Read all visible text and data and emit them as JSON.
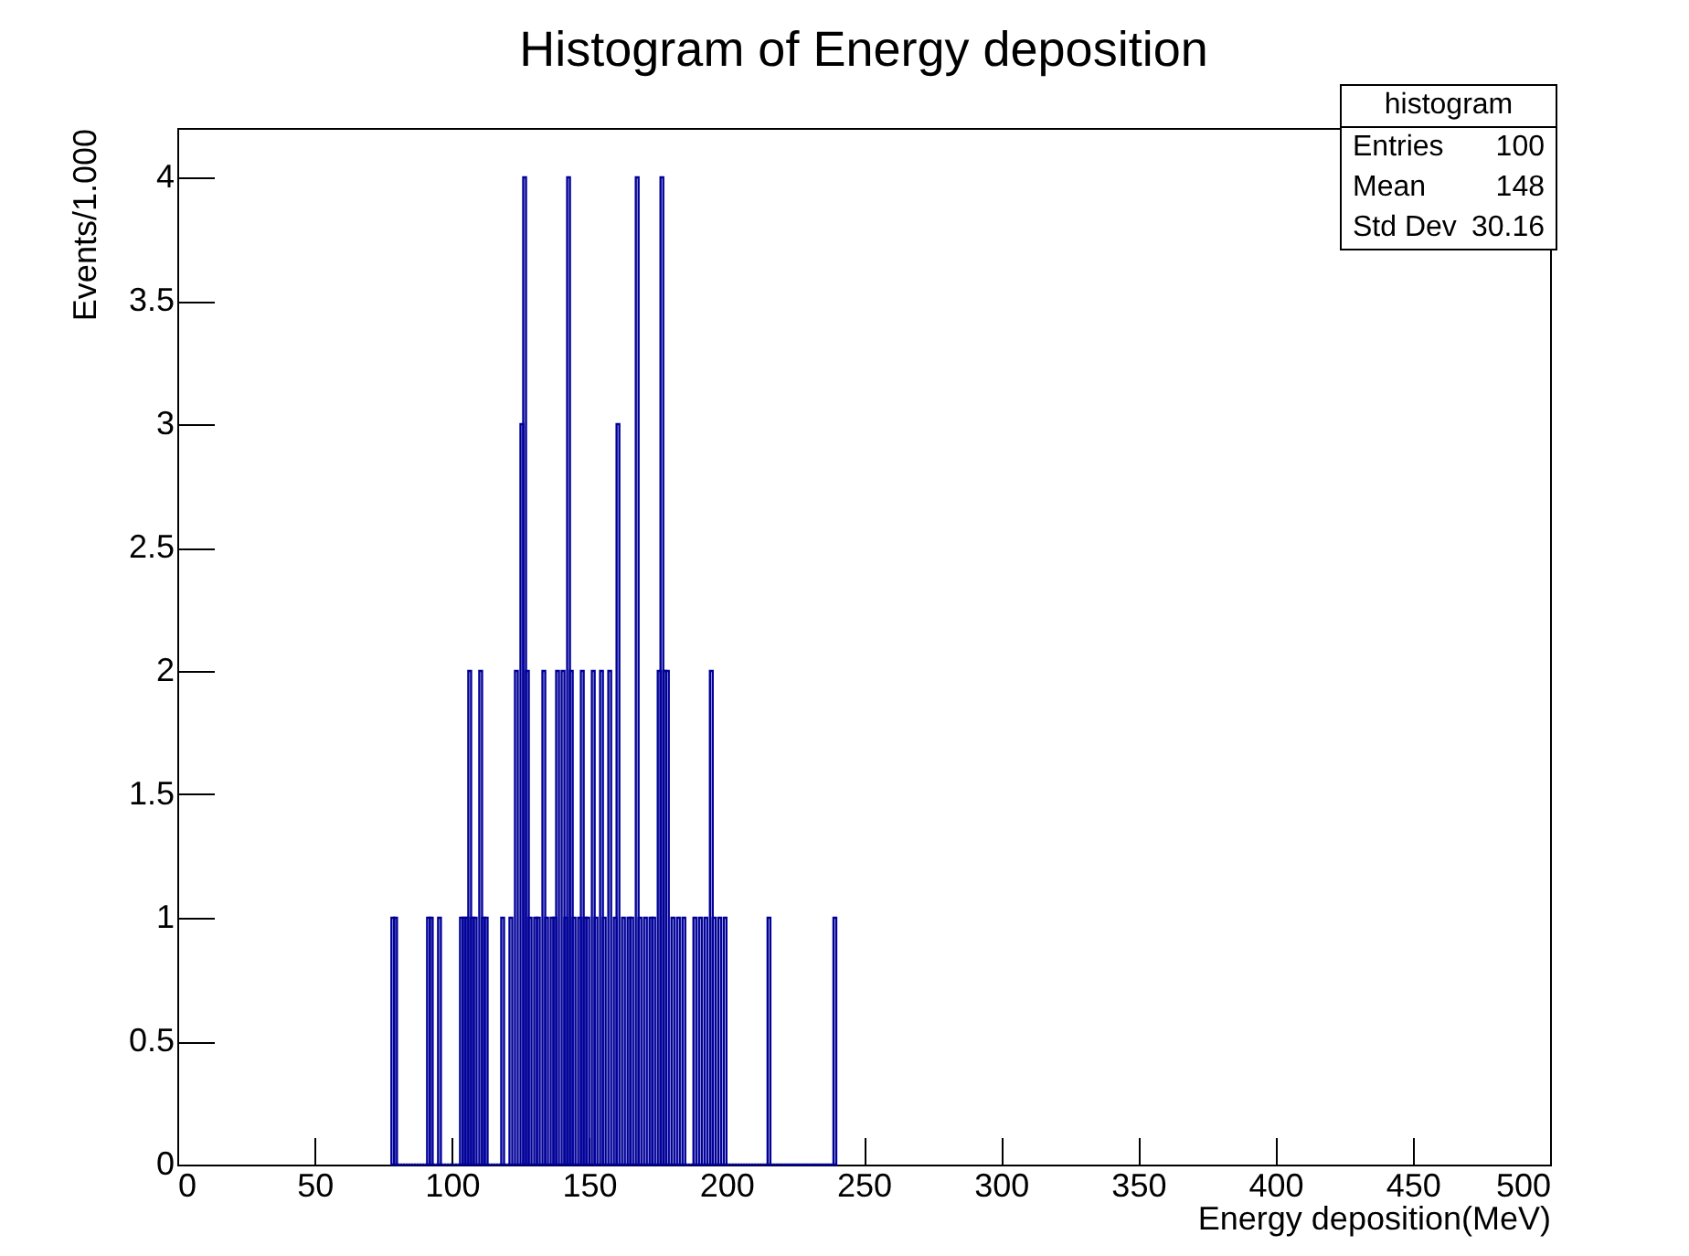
{
  "chart_data": {
    "type": "histogram",
    "title": "Histogram of Energy deposition",
    "xlabel": "Energy deposition(MeV)",
    "ylabel": "Events/1.000",
    "color": "#000099",
    "bins": [
      78,
      79,
      80,
      81,
      82,
      83,
      84,
      85,
      86,
      87,
      88,
      89,
      90,
      91,
      92,
      93,
      94,
      95,
      96,
      97,
      98,
      99,
      100,
      101,
      102,
      103,
      104,
      105,
      106,
      107,
      108,
      109,
      110,
      111,
      112,
      113,
      114,
      115,
      116,
      117,
      118,
      119,
      120,
      121,
      122,
      123,
      124,
      125,
      126,
      127,
      128,
      129,
      130,
      131,
      132,
      133,
      134,
      135,
      136,
      137,
      138,
      139,
      140,
      141,
      142,
      143,
      144,
      145,
      146,
      147,
      148,
      149,
      150,
      151,
      152,
      153,
      154,
      155,
      156,
      157,
      158,
      159,
      160,
      161,
      162,
      163,
      164,
      165,
      166,
      167,
      168,
      169,
      170,
      171,
      172,
      173,
      174,
      175,
      176,
      177,
      178,
      179,
      180,
      181,
      182,
      183,
      184,
      185,
      186,
      187,
      188,
      189,
      190,
      191,
      192,
      193,
      194,
      195,
      196,
      197,
      198,
      199,
      200,
      201,
      202,
      203,
      204,
      205,
      206,
      207,
      208,
      209,
      210,
      211,
      212,
      213,
      214,
      215,
      216,
      217,
      218,
      219,
      220,
      221,
      222,
      223,
      224,
      225,
      226,
      227,
      228,
      229,
      230,
      231,
      232,
      233,
      234,
      235,
      236,
      237,
      238,
      239,
      240
    ],
    "values": [
      1,
      1,
      0,
      0,
      0,
      0,
      0,
      0,
      0,
      0,
      0,
      0,
      0,
      1,
      1,
      0,
      0,
      1,
      0,
      0,
      0,
      0,
      0,
      0,
      0,
      1,
      1,
      1,
      2,
      1,
      1,
      0,
      2,
      1,
      1,
      0,
      0,
      0,
      0,
      0,
      1,
      0,
      0,
      1,
      0,
      2,
      0,
      3,
      4,
      2,
      1,
      0,
      1,
      1,
      0,
      2,
      1,
      0,
      1,
      1,
      2,
      0,
      2,
      1,
      4,
      2,
      1,
      0,
      1,
      2,
      1,
      1,
      0,
      2,
      1,
      0,
      2,
      1,
      0,
      2,
      0,
      1,
      3,
      0,
      1,
      0,
      1,
      1,
      0,
      4,
      1,
      0,
      1,
      0,
      1,
      1,
      0,
      2,
      4,
      2,
      2,
      0,
      1,
      0,
      1,
      0,
      1,
      0,
      0,
      0,
      1,
      0,
      1,
      0,
      1,
      0,
      2,
      1,
      0,
      1,
      0,
      1,
      0,
      0,
      0,
      0,
      0,
      0,
      0,
      0,
      0,
      0,
      0,
      0,
      0,
      0,
      0,
      1,
      0,
      0,
      0,
      0,
      0,
      0,
      0,
      0,
      0,
      0,
      0,
      0,
      0,
      0,
      0,
      0,
      0,
      0,
      0,
      0,
      0,
      0,
      0,
      1
    ],
    "xlim": [
      0,
      500
    ],
    "xticks": [
      0,
      50,
      100,
      150,
      200,
      250,
      300,
      350,
      400,
      450,
      500
    ],
    "ylim": [
      0,
      4.2
    ],
    "yticks": [
      0,
      0.5,
      1,
      1.5,
      2,
      2.5,
      3,
      3.5,
      4
    ],
    "annotations": [
      "histogram",
      "Entries",
      "100",
      "Mean",
      "148",
      "Std Dev",
      "30.16"
    ]
  }
}
